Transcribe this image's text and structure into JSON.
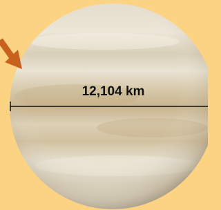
{
  "label": "12,104 km"
}
